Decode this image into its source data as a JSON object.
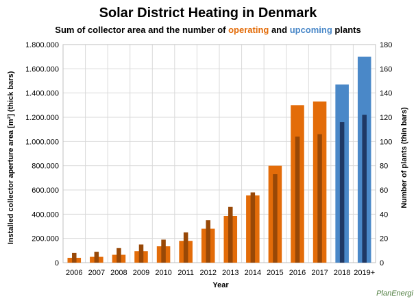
{
  "title": "Solar District Heating in Denmark",
  "subtitle": {
    "prefix": "Sum of collector area and the number of ",
    "operating": "operating",
    "and": " and ",
    "upcoming": "upcoming",
    "suffix": " plants"
  },
  "logo": "PlanEnergi",
  "colors": {
    "operating_thick": "#E36C09",
    "operating_thin": "#984807",
    "upcoming_thick": "#4A88C8",
    "upcoming_thin": "#1F3864",
    "grid": "#d9d9d9"
  },
  "chart_data": {
    "type": "bar",
    "xlabel": "Year",
    "ylabel_left": "Installed collector aperture area [m²] (thick bars)",
    "ylabel_right": "Number of plants (thin bars)",
    "categories": [
      "2006",
      "2007",
      "2008",
      "2009",
      "2010",
      "2011",
      "2012",
      "2013",
      "2014",
      "2015",
      "2016",
      "2017",
      "2018",
      "2019+"
    ],
    "status": [
      "operating",
      "operating",
      "operating",
      "operating",
      "operating",
      "operating",
      "operating",
      "operating",
      "operating",
      "operating",
      "operating",
      "operating",
      "upcoming",
      "upcoming"
    ],
    "series": [
      {
        "axis": "left",
        "values": [
          40000,
          48000,
          65000,
          95000,
          135000,
          180000,
          280000,
          385000,
          555000,
          800000,
          1300000,
          1330000,
          1470000,
          1700000
        ]
      },
      {
        "axis": "right",
        "values": [
          8,
          9,
          12,
          15,
          19,
          25,
          35,
          46,
          58,
          73,
          104,
          106,
          116,
          122
        ]
      }
    ],
    "ylim_left": [
      0,
      1800000
    ],
    "yticks_left": [
      "0",
      "200.000",
      "400.000",
      "600.000",
      "800.000",
      "1.000.000",
      "1.200.000",
      "1.400.000",
      "1.600.000",
      "1.800.000"
    ],
    "ylim_right": [
      0,
      180
    ],
    "yticks_right": [
      "0",
      "20",
      "40",
      "60",
      "80",
      "100",
      "120",
      "140",
      "160",
      "180"
    ],
    "grid": true,
    "legend": "none"
  }
}
